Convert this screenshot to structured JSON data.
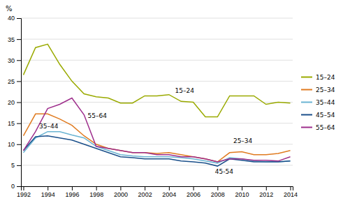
{
  "chart_data": {
    "type": "line",
    "ylabel": "%",
    "x": [
      1992,
      1993,
      1994,
      1995,
      1996,
      1997,
      1998,
      1999,
      2000,
      2001,
      2002,
      2003,
      2004,
      2005,
      2006,
      2007,
      2008,
      2009,
      2010,
      2011,
      2012,
      2013,
      2014
    ],
    "series": [
      {
        "name": "15–24",
        "color": "#9aaa00",
        "values": [
          26.5,
          33.0,
          33.8,
          29.0,
          25.0,
          22.0,
          21.3,
          21.0,
          19.8,
          19.8,
          21.5,
          21.5,
          21.8,
          20.2,
          20.0,
          16.5,
          16.5,
          21.5,
          21.5,
          21.5,
          19.5,
          20.0,
          19.8
        ]
      },
      {
        "name": "25–34",
        "color": "#e07b20",
        "values": [
          12.0,
          17.2,
          17.2,
          16.0,
          14.5,
          12.0,
          10.0,
          9.0,
          8.5,
          8.0,
          8.0,
          7.8,
          8.0,
          7.5,
          7.0,
          6.5,
          5.8,
          8.0,
          8.2,
          7.5,
          7.5,
          7.8,
          8.5
        ]
      },
      {
        "name": "35–44",
        "color": "#6ab4d2",
        "values": [
          8.0,
          11.5,
          13.0,
          13.0,
          12.2,
          11.5,
          9.5,
          8.5,
          7.5,
          7.2,
          7.0,
          7.0,
          7.0,
          6.8,
          6.5,
          6.0,
          5.5,
          6.8,
          6.5,
          6.0,
          5.8,
          5.8,
          6.0
        ]
      },
      {
        "name": "45–54",
        "color": "#1a4f8a",
        "values": [
          8.5,
          11.8,
          12.0,
          11.5,
          11.0,
          10.0,
          9.0,
          8.0,
          7.0,
          6.8,
          6.5,
          6.5,
          6.5,
          6.0,
          5.8,
          5.5,
          4.8,
          6.5,
          6.2,
          5.8,
          5.8,
          5.8,
          6.0
        ]
      },
      {
        "name": "55–64",
        "color": "#9e2e8c",
        "values": [
          8.5,
          13.0,
          18.5,
          19.5,
          21.0,
          17.0,
          9.5,
          9.0,
          8.5,
          8.0,
          8.0,
          7.5,
          7.5,
          7.0,
          7.0,
          6.5,
          5.8,
          6.5,
          6.5,
          6.2,
          6.2,
          6.0,
          7.0
        ]
      }
    ],
    "annotations": [
      {
        "text": "15–24",
        "x": 2004.5,
        "y": 22.8
      },
      {
        "text": "35–44",
        "x": 1993.3,
        "y": 14.3
      },
      {
        "text": "55–64",
        "x": 1997.3,
        "y": 16.8
      },
      {
        "text": "25–34",
        "x": 2009.3,
        "y": 10.8
      },
      {
        "text": "45-54",
        "x": 2007.8,
        "y": 3.5
      }
    ],
    "xlim": [
      1991.8,
      2014.2
    ],
    "xticks": [
      1992,
      1994,
      1996,
      1998,
      2000,
      2002,
      2004,
      2006,
      2008,
      2010,
      2012,
      2014
    ],
    "ylim": [
      0,
      40
    ],
    "yticks": [
      0,
      5,
      10,
      15,
      20,
      25,
      30,
      35,
      40
    ],
    "grid": true,
    "legend": "right"
  }
}
